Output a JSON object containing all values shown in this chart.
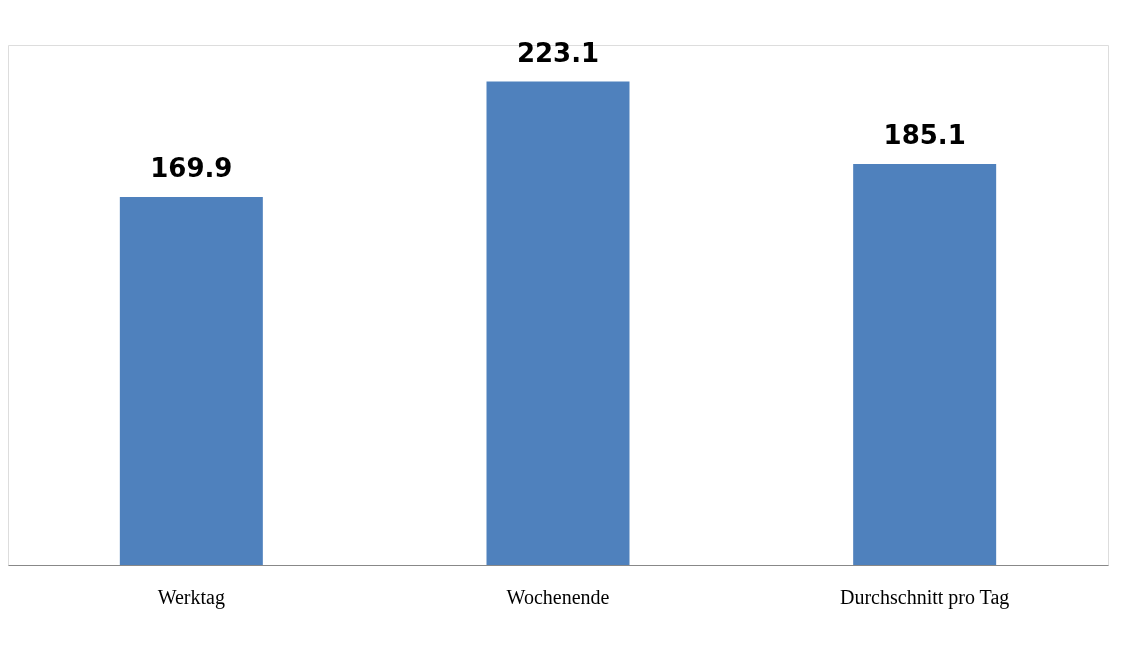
{
  "chart_data": {
    "type": "bar",
    "categories": [
      "Werktag",
      "Wochenende",
      "Durchschnitt pro Tag"
    ],
    "values": [
      169.9,
      223.1,
      185.1
    ],
    "color": "#4f81bd",
    "data_labels": true
  }
}
